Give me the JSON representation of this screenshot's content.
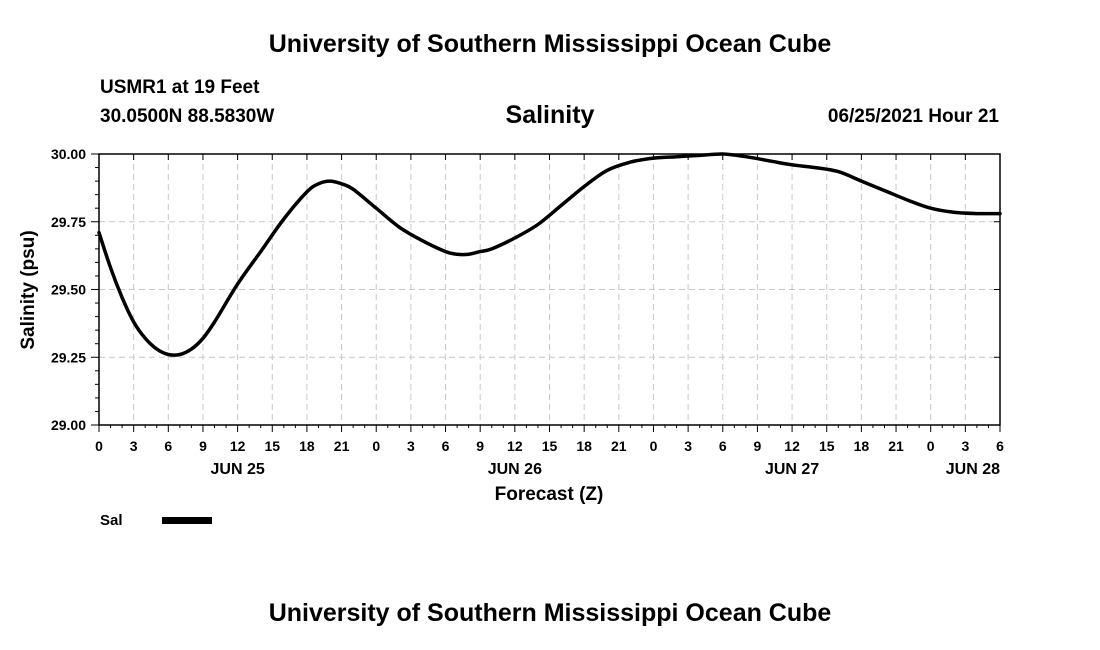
{
  "header": {
    "title": "University of Southern Mississippi Ocean Cube",
    "station": "USMR1 at 19 Feet",
    "coordinates": "30.0500N  88.5830W",
    "parameter": "Salinity",
    "datetime": "06/25/2021 Hour 21"
  },
  "footer": {
    "title": "University of Southern Mississippi Ocean Cube"
  },
  "chart_data": {
    "type": "line",
    "title": "Salinity",
    "xlabel": "Forecast (Z)",
    "ylabel": "Salinity (psu)",
    "ylim": [
      29.0,
      30.0
    ],
    "xlim": [
      0,
      78
    ],
    "grid": true,
    "y_ticks": [
      "29.00",
      "29.25",
      "29.50",
      "29.75",
      "30.00"
    ],
    "x_tick_labels": [
      "0",
      "3",
      "6",
      "9",
      "12",
      "15",
      "18",
      "21",
      "0",
      "3",
      "6",
      "9",
      "12",
      "15",
      "18",
      "21",
      "0",
      "3",
      "6",
      "9",
      "12",
      "15",
      "18",
      "21",
      "0",
      "3",
      "6"
    ],
    "date_labels": [
      {
        "label": "JUN 25",
        "hour": 12
      },
      {
        "label": "JUN 26",
        "hour": 36
      },
      {
        "label": "JUN 27",
        "hour": 60
      },
      {
        "label": "JUN 28",
        "hour": 78
      }
    ],
    "legend": {
      "position": "bottom-left",
      "label": "Sal"
    },
    "series": [
      {
        "name": "Sal",
        "x": [
          0,
          1,
          2,
          3,
          4,
          5,
          6,
          7,
          8,
          9,
          10,
          12,
          14,
          16,
          18,
          19,
          20,
          21,
          22,
          24,
          26,
          28,
          30,
          31,
          32,
          33,
          34,
          36,
          38,
          40,
          42,
          44,
          46,
          48,
          50,
          52,
          54,
          56,
          58,
          60,
          62,
          64,
          66,
          68,
          70,
          72,
          74,
          76,
          78
        ],
        "values": [
          29.71,
          29.58,
          29.47,
          29.38,
          29.32,
          29.28,
          29.26,
          29.26,
          29.28,
          29.32,
          29.38,
          29.52,
          29.64,
          29.76,
          29.86,
          29.89,
          29.9,
          29.89,
          29.87,
          29.8,
          29.73,
          29.68,
          29.64,
          29.63,
          29.63,
          29.64,
          29.65,
          29.69,
          29.74,
          29.81,
          29.88,
          29.94,
          29.97,
          29.985,
          29.99,
          29.995,
          30.0,
          29.99,
          29.975,
          29.96,
          29.95,
          29.935,
          29.9,
          29.865,
          29.83,
          29.8,
          29.785,
          29.78,
          29.78
        ]
      }
    ]
  }
}
